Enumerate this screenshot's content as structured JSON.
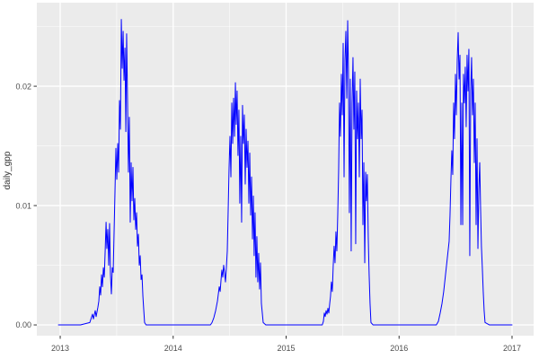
{
  "figure": {
    "background": "#FFFFFF"
  },
  "chart_data": {
    "type": "line",
    "title": "",
    "xlabel": "",
    "ylabel": "daily_gpp",
    "legend": "none",
    "grid": true,
    "theme": "ggplot-gray",
    "colors": {
      "panel_bg": "#EBEBEB",
      "grid_major": "#FFFFFF",
      "grid_minor": "#FFFFFF",
      "axis_text": "#4D4D4D",
      "axis_title": "#333333",
      "tick_mark": "#333333",
      "line": "#0000FF"
    },
    "x_range": [
      2012.793,
      2017.191
    ],
    "y_range": [
      -0.0009,
      0.027
    ],
    "x_ticks": [
      {
        "value": 2013,
        "label": "2013"
      },
      {
        "value": 2014,
        "label": "2014"
      },
      {
        "value": 2015,
        "label": "2015"
      },
      {
        "value": 2016,
        "label": "2016"
      },
      {
        "value": 2017,
        "label": "2017"
      }
    ],
    "y_ticks": [
      {
        "value": 0.0,
        "label": "0.00"
      },
      {
        "value": 0.01,
        "label": "0.01"
      },
      {
        "value": 0.02,
        "label": "0.02"
      }
    ],
    "x_minor_ticks": [
      2013.5,
      2014.5,
      2015.5,
      2016.5
    ],
    "y_minor_ticks": [
      0.005,
      0.015,
      0.025
    ],
    "series": [
      {
        "name": "daily_gpp",
        "color": "#0000FF",
        "points": [
          [
            2012.984,
            0.0
          ],
          [
            2013.18,
            0.0
          ],
          [
            2013.262,
            0.0002
          ],
          [
            2013.286,
            0.0009
          ],
          [
            2013.294,
            0.0005
          ],
          [
            2013.31,
            0.0012
          ],
          [
            2013.318,
            0.0007
          ],
          [
            2013.334,
            0.0015
          ],
          [
            2013.342,
            0.002
          ],
          [
            2013.35,
            0.0032
          ],
          [
            2013.358,
            0.0025
          ],
          [
            2013.366,
            0.0042
          ],
          [
            2013.374,
            0.0032
          ],
          [
            2013.382,
            0.0048
          ],
          [
            2013.39,
            0.004
          ],
          [
            2013.398,
            0.0062
          ],
          [
            2013.406,
            0.0086
          ],
          [
            2013.413,
            0.0064
          ],
          [
            2013.421,
            0.008
          ],
          [
            2013.429,
            0.005
          ],
          [
            2013.437,
            0.0085
          ],
          [
            2013.445,
            0.0042
          ],
          [
            2013.453,
            0.0026
          ],
          [
            2013.461,
            0.0048
          ],
          [
            2013.469,
            0.0044
          ],
          [
            2013.477,
            0.0078
          ],
          [
            2013.485,
            0.0112
          ],
          [
            2013.493,
            0.0148
          ],
          [
            2013.501,
            0.0122
          ],
          [
            2013.509,
            0.0152
          ],
          [
            2013.517,
            0.0128
          ],
          [
            2013.525,
            0.0188
          ],
          [
            2013.533,
            0.0164
          ],
          [
            2013.541,
            0.0256
          ],
          [
            2013.549,
            0.0215
          ],
          [
            2013.557,
            0.0246
          ],
          [
            2013.565,
            0.0205
          ],
          [
            2013.573,
            0.0232
          ],
          [
            2013.581,
            0.0162
          ],
          [
            2013.588,
            0.0244
          ],
          [
            2013.596,
            0.0188
          ],
          [
            2013.604,
            0.0128
          ],
          [
            2013.612,
            0.0174
          ],
          [
            2013.62,
            0.0086
          ],
          [
            2013.628,
            0.0136
          ],
          [
            2013.636,
            0.0104
          ],
          [
            2013.644,
            0.0132
          ],
          [
            2013.652,
            0.0088
          ],
          [
            2013.66,
            0.0106
          ],
          [
            2013.668,
            0.008
          ],
          [
            2013.676,
            0.0094
          ],
          [
            2013.684,
            0.0066
          ],
          [
            2013.692,
            0.0076
          ],
          [
            2013.7,
            0.005
          ],
          [
            2013.708,
            0.0058
          ],
          [
            2013.716,
            0.0038
          ],
          [
            2013.724,
            0.0042
          ],
          [
            2013.732,
            0.0024
          ],
          [
            2013.74,
            0.0012
          ],
          [
            2013.747,
            0.0002
          ],
          [
            2013.76,
            0.0
          ],
          [
            2014.33,
            0.0
          ],
          [
            2014.344,
            0.0002
          ],
          [
            2014.36,
            0.0006
          ],
          [
            2014.376,
            0.0012
          ],
          [
            2014.392,
            0.002
          ],
          [
            2014.408,
            0.0032
          ],
          [
            2014.416,
            0.0028
          ],
          [
            2014.424,
            0.0038
          ],
          [
            2014.431,
            0.0046
          ],
          [
            2014.439,
            0.004
          ],
          [
            2014.447,
            0.005
          ],
          [
            2014.455,
            0.0044
          ],
          [
            2014.463,
            0.0036
          ],
          [
            2014.471,
            0.0048
          ],
          [
            2014.479,
            0.0062
          ],
          [
            2014.487,
            0.0096
          ],
          [
            2014.495,
            0.0132
          ],
          [
            2014.503,
            0.0158
          ],
          [
            2014.511,
            0.0124
          ],
          [
            2014.519,
            0.0186
          ],
          [
            2014.527,
            0.0152
          ],
          [
            2014.535,
            0.019
          ],
          [
            2014.543,
            0.0158
          ],
          [
            2014.551,
            0.0203
          ],
          [
            2014.558,
            0.0168
          ],
          [
            2014.566,
            0.0196
          ],
          [
            2014.574,
            0.0142
          ],
          [
            2014.582,
            0.018
          ],
          [
            2014.59,
            0.0102
          ],
          [
            2014.598,
            0.0158
          ],
          [
            2014.606,
            0.0086
          ],
          [
            2014.614,
            0.0184
          ],
          [
            2014.622,
            0.0152
          ],
          [
            2014.63,
            0.0176
          ],
          [
            2014.638,
            0.0118
          ],
          [
            2014.646,
            0.0164
          ],
          [
            2014.654,
            0.0132
          ],
          [
            2014.662,
            0.0154
          ],
          [
            2014.67,
            0.0102
          ],
          [
            2014.678,
            0.0144
          ],
          [
            2014.686,
            0.0092
          ],
          [
            2014.694,
            0.0124
          ],
          [
            2014.702,
            0.0072
          ],
          [
            2014.71,
            0.0108
          ],
          [
            2014.717,
            0.0058
          ],
          [
            2014.725,
            0.0094
          ],
          [
            2014.733,
            0.004
          ],
          [
            2014.741,
            0.0074
          ],
          [
            2014.749,
            0.0036
          ],
          [
            2014.757,
            0.006
          ],
          [
            2014.765,
            0.003
          ],
          [
            2014.773,
            0.0052
          ],
          [
            2014.781,
            0.0018
          ],
          [
            2014.789,
            0.001
          ],
          [
            2014.797,
            0.0002
          ],
          [
            2014.82,
            0.0
          ],
          [
            2015.32,
            0.0
          ],
          [
            2015.33,
            0.0003
          ],
          [
            2015.338,
            0.001
          ],
          [
            2015.346,
            0.0007
          ],
          [
            2015.354,
            0.0012
          ],
          [
            2015.362,
            0.0009
          ],
          [
            2015.37,
            0.0014
          ],
          [
            2015.378,
            0.001
          ],
          [
            2015.386,
            0.0018
          ],
          [
            2015.393,
            0.0024
          ],
          [
            2015.401,
            0.0036
          ],
          [
            2015.409,
            0.0028
          ],
          [
            2015.417,
            0.005
          ],
          [
            2015.425,
            0.0066
          ],
          [
            2015.433,
            0.0052
          ],
          [
            2015.441,
            0.0078
          ],
          [
            2015.449,
            0.0062
          ],
          [
            2015.457,
            0.0092
          ],
          [
            2015.465,
            0.013
          ],
          [
            2015.473,
            0.0186
          ],
          [
            2015.481,
            0.0158
          ],
          [
            2015.489,
            0.021
          ],
          [
            2015.497,
            0.0176
          ],
          [
            2015.505,
            0.0236
          ],
          [
            2015.513,
            0.0124
          ],
          [
            2015.521,
            0.0222
          ],
          [
            2015.529,
            0.0246
          ],
          [
            2015.537,
            0.019
          ],
          [
            2015.545,
            0.0255
          ],
          [
            2015.552,
            0.0212
          ],
          [
            2015.56,
            0.0094
          ],
          [
            2015.568,
            0.0206
          ],
          [
            2015.576,
            0.0062
          ],
          [
            2015.584,
            0.0186
          ],
          [
            2015.592,
            0.0224
          ],
          [
            2015.6,
            0.0164
          ],
          [
            2015.608,
            0.0212
          ],
          [
            2015.616,
            0.0068
          ],
          [
            2015.624,
            0.0196
          ],
          [
            2015.632,
            0.0156
          ],
          [
            2015.64,
            0.0186
          ],
          [
            2015.648,
            0.0124
          ],
          [
            2015.656,
            0.0206
          ],
          [
            2015.664,
            0.0156
          ],
          [
            2015.672,
            0.018
          ],
          [
            2015.68,
            0.0084
          ],
          [
            2015.688,
            0.0136
          ],
          [
            2015.696,
            0.0052
          ],
          [
            2015.704,
            0.0128
          ],
          [
            2015.711,
            0.0104
          ],
          [
            2015.719,
            0.0126
          ],
          [
            2015.727,
            0.0074
          ],
          [
            2015.735,
            0.0042
          ],
          [
            2015.743,
            0.0018
          ],
          [
            2015.751,
            0.0002
          ],
          [
            2015.77,
            0.0
          ],
          [
            2016.33,
            0.0
          ],
          [
            2016.348,
            0.0003
          ],
          [
            2016.364,
            0.001
          ],
          [
            2016.38,
            0.0018
          ],
          [
            2016.395,
            0.0028
          ],
          [
            2016.411,
            0.0042
          ],
          [
            2016.427,
            0.0056
          ],
          [
            2016.443,
            0.007
          ],
          [
            2016.451,
            0.0092
          ],
          [
            2016.459,
            0.0122
          ],
          [
            2016.467,
            0.0146
          ],
          [
            2016.475,
            0.0126
          ],
          [
            2016.483,
            0.0186
          ],
          [
            2016.491,
            0.0156
          ],
          [
            2016.499,
            0.021
          ],
          [
            2016.507,
            0.0176
          ],
          [
            2016.515,
            0.0222
          ],
          [
            2016.523,
            0.0245
          ],
          [
            2016.531,
            0.0206
          ],
          [
            2016.539,
            0.0226
          ],
          [
            2016.547,
            0.0084
          ],
          [
            2016.555,
            0.0186
          ],
          [
            2016.563,
            0.0084
          ],
          [
            2016.57,
            0.021
          ],
          [
            2016.578,
            0.0186
          ],
          [
            2016.586,
            0.0216
          ],
          [
            2016.594,
            0.0166
          ],
          [
            2016.602,
            0.0226
          ],
          [
            2016.61,
            0.0196
          ],
          [
            2016.618,
            0.0231
          ],
          [
            2016.626,
            0.0058
          ],
          [
            2016.634,
            0.0196
          ],
          [
            2016.642,
            0.0224
          ],
          [
            2016.65,
            0.0176
          ],
          [
            2016.658,
            0.0206
          ],
          [
            2016.666,
            0.0136
          ],
          [
            2016.674,
            0.0186
          ],
          [
            2016.682,
            0.0084
          ],
          [
            2016.69,
            0.0156
          ],
          [
            2016.698,
            0.0064
          ],
          [
            2016.706,
            0.0114
          ],
          [
            2016.714,
            0.0136
          ],
          [
            2016.722,
            0.0096
          ],
          [
            2016.729,
            0.0066
          ],
          [
            2016.737,
            0.0048
          ],
          [
            2016.745,
            0.0028
          ],
          [
            2016.753,
            0.0012
          ],
          [
            2016.761,
            0.0002
          ],
          [
            2016.8,
            0.0
          ],
          [
            2017.0,
            0.0
          ]
        ]
      }
    ]
  }
}
